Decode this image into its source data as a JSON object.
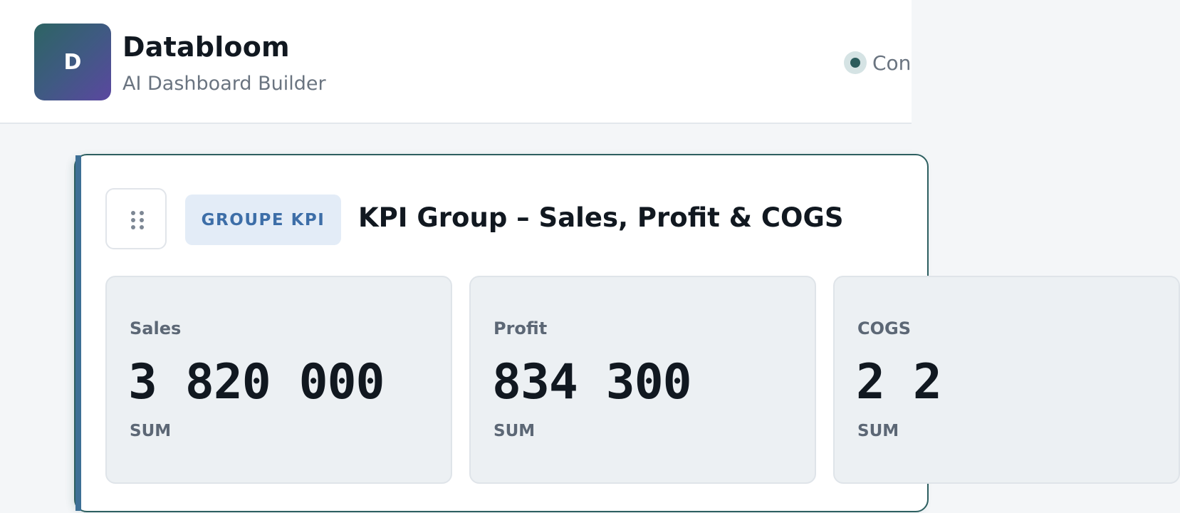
{
  "header": {
    "logo_letter": "D",
    "app_name": "Databloom",
    "app_subtitle": "AI Dashboard Builder",
    "status_label": "Con"
  },
  "panel": {
    "badge": "GROUPE KPI",
    "title": "KPI Group – Sales, Profit & COGS",
    "drag_icon": "drag-handle-icon",
    "accent_color": "#2d5f60"
  },
  "kpis": [
    {
      "label": "Sales",
      "value": "3 820 000",
      "aggregation": "SUM"
    },
    {
      "label": "Profit",
      "value": "834 300",
      "aggregation": "SUM"
    },
    {
      "label": "COGS",
      "value": "2 2",
      "aggregation": "SUM"
    }
  ]
}
